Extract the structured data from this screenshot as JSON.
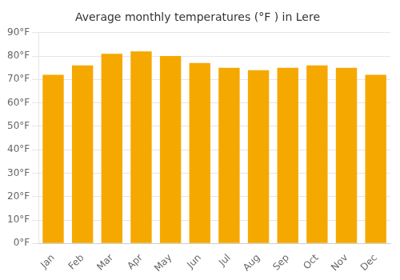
{
  "chart_data": {
    "type": "bar",
    "title": "Average monthly temperatures (°F ) in Lere",
    "categories": [
      "Jan",
      "Feb",
      "Mar",
      "Apr",
      "May",
      "Jun",
      "Jul",
      "Aug",
      "Sep",
      "Oct",
      "Nov",
      "Dec"
    ],
    "values": [
      72,
      76,
      81,
      82,
      80,
      77,
      75,
      74,
      75,
      76,
      75,
      72
    ],
    "color": "#F5A800",
    "ylim": [
      0,
      90
    ],
    "yticks": [
      {
        "value": 0,
        "label": "0°F"
      },
      {
        "value": 10,
        "label": "10°F"
      },
      {
        "value": 20,
        "label": "20°F"
      },
      {
        "value": 30,
        "label": "30°F"
      },
      {
        "value": 40,
        "label": "40°F"
      },
      {
        "value": 50,
        "label": "50°F"
      },
      {
        "value": 60,
        "label": "60°F"
      },
      {
        "value": 70,
        "label": "70°F"
      },
      {
        "value": 80,
        "label": "80°F"
      },
      {
        "value": 90,
        "label": "90°F"
      }
    ],
    "grid": true
  }
}
